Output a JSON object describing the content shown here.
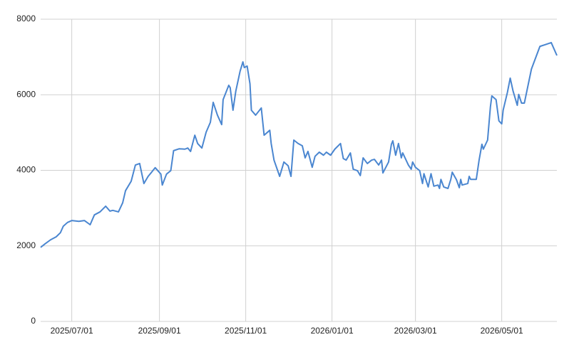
{
  "chart_data": {
    "type": "line",
    "x": [
      "2025-06-09",
      "2025-06-12",
      "2025-06-16",
      "2025-06-20",
      "2025-06-23",
      "2025-06-25",
      "2025-06-28",
      "2025-07-01",
      "2025-07-06",
      "2025-07-10",
      "2025-07-14",
      "2025-07-17",
      "2025-07-21",
      "2025-07-25",
      "2025-07-28",
      "2025-07-30",
      "2025-08-03",
      "2025-08-06",
      "2025-08-08",
      "2025-08-12",
      "2025-08-15",
      "2025-08-18",
      "2025-08-21",
      "2025-08-24",
      "2025-08-26",
      "2025-08-29",
      "2025-09-02",
      "2025-09-03",
      "2025-09-06",
      "2025-09-09",
      "2025-09-11",
      "2025-09-15",
      "2025-09-19",
      "2025-09-21",
      "2025-09-23",
      "2025-09-26",
      "2025-09-28",
      "2025-10-01",
      "2025-10-04",
      "2025-10-07",
      "2025-10-09",
      "2025-10-12",
      "2025-10-15",
      "2025-10-16",
      "2025-10-20",
      "2025-10-21",
      "2025-10-23",
      "2025-10-25",
      "2025-10-28",
      "2025-10-30",
      "2025-10-31",
      "2025-11-02",
      "2025-11-04",
      "2025-11-05",
      "2025-11-08",
      "2025-11-12",
      "2025-11-14",
      "2025-11-18",
      "2025-11-19",
      "2025-11-21",
      "2025-11-25",
      "2025-11-28",
      "2025-12-01",
      "2025-12-03",
      "2025-12-05",
      "2025-12-08",
      "2025-12-11",
      "2025-12-13",
      "2025-12-15",
      "2025-12-18",
      "2025-12-20",
      "2025-12-23",
      "2025-12-26",
      "2025-12-28",
      "2025-12-31",
      "2026-01-03",
      "2026-01-07",
      "2026-01-09",
      "2026-01-11",
      "2026-01-14",
      "2026-01-16",
      "2026-01-19",
      "2026-01-21",
      "2026-01-23",
      "2026-01-26",
      "2026-01-29",
      "2026-01-31",
      "2026-02-03",
      "2026-02-05",
      "2026-02-06",
      "2026-02-10",
      "2026-02-12",
      "2026-02-13",
      "2026-02-15",
      "2026-02-17",
      "2026-02-19",
      "2026-02-20",
      "2026-02-24",
      "2026-02-26",
      "2026-02-27",
      "2026-03-01",
      "2026-03-04",
      "2026-03-06",
      "2026-03-07",
      "2026-03-10",
      "2026-03-12",
      "2026-03-14",
      "2026-03-17",
      "2026-03-18",
      "2026-03-19",
      "2026-03-21",
      "2026-03-24",
      "2026-03-26",
      "2026-03-27",
      "2026-03-30",
      "2026-04-01",
      "2026-04-02",
      "2026-04-03",
      "2026-04-07",
      "2026-04-08",
      "2026-04-09",
      "2026-04-13",
      "2026-04-15",
      "2026-04-17",
      "2026-04-18",
      "2026-04-21",
      "2026-04-23",
      "2026-04-24",
      "2026-04-27",
      "2026-04-29",
      "2026-05-01",
      "2026-05-02",
      "2026-05-05",
      "2026-05-07",
      "2026-05-09",
      "2026-05-12",
      "2026-05-13",
      "2026-05-15",
      "2026-05-17",
      "2026-05-22",
      "2026-05-28",
      "2026-06-05",
      "2026-06-09"
    ],
    "series": [
      {
        "color": "#4a86d0",
        "values": [
          1960,
          2050,
          2160,
          2240,
          2350,
          2520,
          2620,
          2670,
          2650,
          2670,
          2560,
          2820,
          2900,
          3050,
          2920,
          2940,
          2900,
          3140,
          3460,
          3710,
          4140,
          4180,
          3650,
          3840,
          3930,
          4070,
          3900,
          3610,
          3900,
          3990,
          4520,
          4570,
          4560,
          4590,
          4500,
          4930,
          4710,
          4590,
          5010,
          5270,
          5800,
          5460,
          5210,
          5870,
          6250,
          6190,
          5590,
          6100,
          6620,
          6870,
          6720,
          6760,
          6290,
          5590,
          5460,
          5650,
          4930,
          5060,
          4710,
          4270,
          3840,
          4220,
          4120,
          3840,
          4800,
          4710,
          4650,
          4330,
          4500,
          4080,
          4370,
          4480,
          4400,
          4480,
          4400,
          4560,
          4710,
          4310,
          4270,
          4460,
          4030,
          3990,
          3860,
          4330,
          4180,
          4270,
          4290,
          4140,
          4270,
          3930,
          4220,
          4690,
          4780,
          4400,
          4710,
          4330,
          4460,
          4140,
          4030,
          4220,
          4080,
          3990,
          3650,
          3910,
          3560,
          3910,
          3580,
          3610,
          3520,
          3760,
          3560,
          3520,
          3760,
          3950,
          3750,
          3540,
          3760,
          3610,
          3650,
          3840,
          3760,
          3760,
          4270,
          4690,
          4560,
          4800,
          5680,
          5970,
          5870,
          5310,
          5230,
          5590,
          6060,
          6440,
          6100,
          5720,
          6010,
          5780,
          5780,
          6680,
          7280,
          7380,
          7040
        ]
      }
    ],
    "xlim": [
      "2025-06-09",
      "2026-06-09"
    ],
    "xticks": [
      {
        "value": "2025-07-01",
        "label": "2025/07/01"
      },
      {
        "value": "2025-09-01",
        "label": "2025/09/01"
      },
      {
        "value": "2025-11-01",
        "label": "2025/11/01"
      },
      {
        "value": "2026-01-01",
        "label": "2026/01/01"
      },
      {
        "value": "2026-03-01",
        "label": "2026/03/01"
      },
      {
        "value": "2026-05-01",
        "label": "2026/05/01"
      }
    ],
    "ylim": [
      0,
      8000
    ],
    "yticks": [
      0,
      2000,
      4000,
      6000,
      8000
    ],
    "grid": true
  }
}
